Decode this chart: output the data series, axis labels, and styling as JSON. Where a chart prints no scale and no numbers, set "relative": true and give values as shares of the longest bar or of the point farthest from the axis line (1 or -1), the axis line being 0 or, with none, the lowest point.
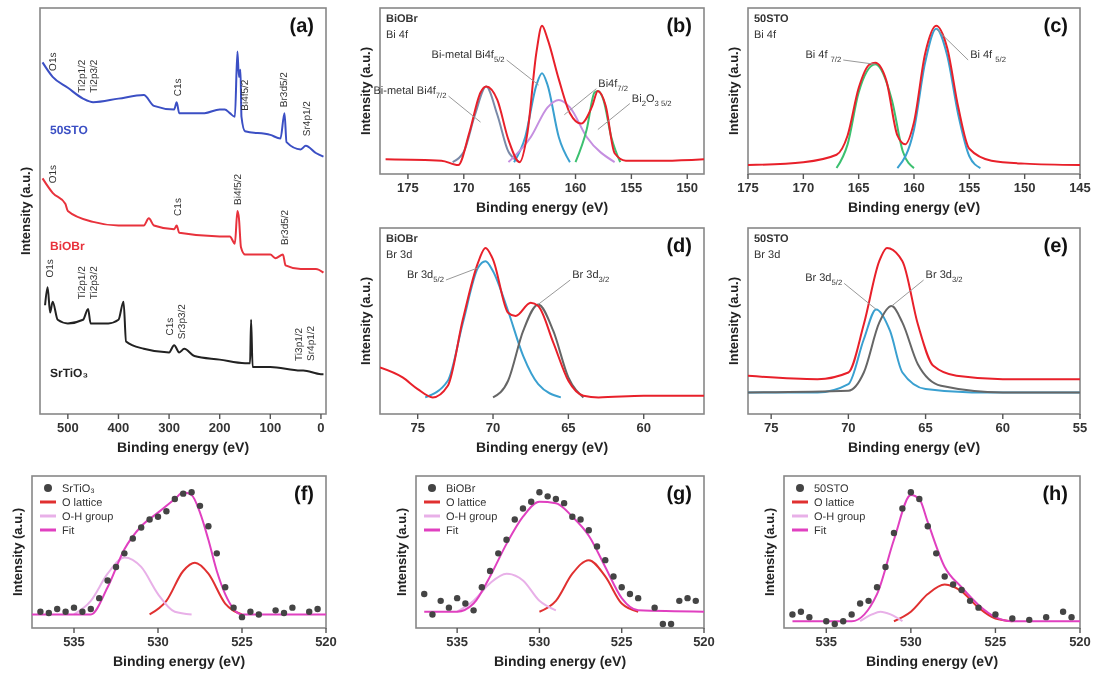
{
  "chart_data": [
    {
      "type": "line",
      "title": "(a)",
      "xlabel": "Binding energy (eV)",
      "ylabel": "Intensity (a.u.)",
      "relative": true,
      "xlim": [
        555,
        -10
      ],
      "xticks": [
        500,
        400,
        300,
        200,
        100,
        0
      ],
      "annotations": [
        {
          "text": "O1s",
          "x": 532,
          "y": 0.93
        },
        {
          "text": "Ti2p1/2",
          "x": 474,
          "y": 0.87
        },
        {
          "text": "Ti2p3/2",
          "x": 450,
          "y": 0.87
        },
        {
          "text": "C1s",
          "x": 285,
          "y": 0.86
        },
        {
          "text": "Bi4f5/2",
          "x": 152,
          "y": 0.82
        },
        {
          "text": "Br3d5/2",
          "x": 75,
          "y": 0.83
        },
        {
          "text": "Sr4p1/2",
          "x": 30,
          "y": 0.75
        },
        {
          "text": "O1s",
          "x": 532,
          "y": 0.62
        },
        {
          "text": "C1s",
          "x": 285,
          "y": 0.53
        },
        {
          "text": "Bi4f5/2",
          "x": 165,
          "y": 0.56
        },
        {
          "text": "Br3d5/2",
          "x": 72,
          "y": 0.45
        },
        {
          "text": "O1s",
          "x": 537,
          "y": 0.36
        },
        {
          "text": "Ti2p1/2",
          "x": 474,
          "y": 0.3
        },
        {
          "text": "Ti2p3/2",
          "x": 450,
          "y": 0.3
        },
        {
          "text": "C1s",
          "x": 300,
          "y": 0.2
        },
        {
          "text": "Sr3p3/2",
          "x": 276,
          "y": 0.19
        },
        {
          "text": "Ti3p1/2",
          "x": 46,
          "y": 0.13
        },
        {
          "text": "Sr4p1/2",
          "x": 22,
          "y": 0.13
        }
      ],
      "series": [
        {
          "name": "50STO",
          "color": "#3b4fc4",
          "x": [
            550,
            530,
            500,
            470,
            450,
            400,
            350,
            330,
            290,
            285,
            280,
            230,
            200,
            190,
            180,
            170,
            165,
            162,
            159,
            157,
            150,
            100,
            80,
            72,
            68,
            40,
            30,
            10,
            -5
          ],
          "values": [
            0.97,
            0.93,
            0.9,
            0.87,
            0.86,
            0.87,
            0.88,
            0.85,
            0.84,
            0.86,
            0.83,
            0.83,
            0.84,
            0.84,
            0.83,
            0.82,
            1.0,
            0.93,
            0.95,
            0.82,
            0.78,
            0.77,
            0.76,
            0.83,
            0.75,
            0.73,
            0.74,
            0.72,
            0.71
          ]
        },
        {
          "name": "BiOBr",
          "color": "#e8323c",
          "x": [
            550,
            530,
            505,
            500,
            450,
            400,
            350,
            340,
            330,
            290,
            285,
            280,
            200,
            180,
            170,
            165,
            162,
            158,
            150,
            100,
            90,
            75,
            70,
            40,
            10,
            -5
          ],
          "values": [
            0.65,
            0.61,
            0.58,
            0.56,
            0.53,
            0.52,
            0.52,
            0.54,
            0.52,
            0.51,
            0.52,
            0.5,
            0.49,
            0.49,
            0.47,
            0.56,
            0.54,
            0.46,
            0.44,
            0.44,
            0.43,
            0.44,
            0.41,
            0.4,
            0.4,
            0.39
          ]
        },
        {
          "name": "SrTiO₃",
          "color": "#222222",
          "x": [
            545,
            540,
            535,
            530,
            520,
            500,
            470,
            460,
            455,
            420,
            400,
            390,
            385,
            350,
            300,
            290,
            280,
            270,
            250,
            200,
            150,
            140,
            138,
            135,
            100,
            40,
            35,
            0,
            -5
          ],
          "values": [
            0.3,
            0.35,
            0.28,
            0.31,
            0.26,
            0.25,
            0.26,
            0.29,
            0.25,
            0.25,
            0.26,
            0.31,
            0.2,
            0.18,
            0.17,
            0.19,
            0.17,
            0.18,
            0.16,
            0.15,
            0.14,
            0.14,
            0.26,
            0.13,
            0.13,
            0.12,
            0.12,
            0.11,
            0.11
          ]
        }
      ]
    },
    {
      "type": "line",
      "title": "(b)",
      "xlabel": "Binding energy (eV)",
      "ylabel": "Intensity (a.u.)",
      "relative": true,
      "xlim": [
        177.5,
        148.5
      ],
      "xticks": [
        175,
        170,
        165,
        160,
        155,
        150
      ],
      "annotations": [
        "BiOBr",
        "Bi 4f",
        {
          "text": "Bi-metal Bi4f$_{5/2}$",
          "x": 163.3,
          "y": 0.6
        },
        {
          "text": "Bi-metal Bi4f$_{7/2}$",
          "x": 168.5,
          "y": 0.35
        },
        {
          "text": "Bi4f$_{7/2}$",
          "x": 161,
          "y": 0.4
        },
        {
          "text": "Bi$_{2}$O$_{3 5/2}$",
          "x": 158,
          "y": 0.3
        }
      ],
      "series": [
        {
          "color": "#7a8aa8",
          "x": [
            171,
            170,
            169,
            168,
            167,
            166,
            165
          ],
          "values": [
            0.08,
            0.15,
            0.4,
            0.59,
            0.4,
            0.15,
            0.08
          ]
        },
        {
          "color": "#3aa0d0",
          "x": [
            165.5,
            164.5,
            163.5,
            163,
            162.5,
            161.5,
            160.5
          ],
          "values": [
            0.08,
            0.25,
            0.6,
            0.68,
            0.6,
            0.25,
            0.08
          ]
        },
        {
          "color": "#c58fe0",
          "x": [
            166,
            164,
            162.5,
            161.5,
            160.5,
            159,
            156.5
          ],
          "values": [
            0.08,
            0.25,
            0.45,
            0.5,
            0.45,
            0.25,
            0.08
          ]
        },
        {
          "color": "#3cc070",
          "x": [
            160,
            159,
            158.3,
            158,
            157.5,
            156.8,
            156
          ],
          "values": [
            0.08,
            0.3,
            0.55,
            0.56,
            0.5,
            0.25,
            0.08
          ]
        },
        {
          "color": "#e8202a",
          "x": [
            177,
            172,
            170.5,
            169.5,
            168.5,
            168,
            167,
            166,
            165,
            164.3,
            163.5,
            163,
            162.5,
            161.5,
            160.5,
            159.5,
            158.5,
            158,
            157.3,
            156.5,
            155.5,
            152,
            148.5
          ],
          "values": [
            0.1,
            0.09,
            0.06,
            0.28,
            0.55,
            0.59,
            0.5,
            0.23,
            0.08,
            0.28,
            0.82,
            1.0,
            0.91,
            0.64,
            0.41,
            0.34,
            0.46,
            0.56,
            0.46,
            0.14,
            0.09,
            0.09,
            0.1
          ]
        }
      ]
    },
    {
      "type": "line",
      "title": "(c)",
      "xlabel": "Binding energy (eV)",
      "ylabel": "Intensity (a.u.)",
      "relative": true,
      "xlim": [
        175,
        145
      ],
      "xticks": [
        175,
        170,
        165,
        160,
        155,
        150,
        145
      ],
      "annotations": [
        "50STO",
        "Bi 4f",
        {
          "text": "Bi 4f $_{7/2}$",
          "x": 163.5,
          "y": 0.74
        },
        {
          "text": "Bi 4f $_{5/2}$",
          "x": 158,
          "y": 0.98
        }
      ],
      "series": [
        {
          "color": "#3cc070",
          "x": [
            167,
            166,
            165,
            163.5,
            162,
            161,
            160
          ],
          "values": [
            0.04,
            0.2,
            0.55,
            0.74,
            0.5,
            0.15,
            0.04
          ]
        },
        {
          "color": "#3aa0d0",
          "x": [
            161.5,
            160,
            159,
            158,
            157,
            156,
            155,
            154
          ],
          "values": [
            0.04,
            0.3,
            0.75,
            0.98,
            0.8,
            0.4,
            0.12,
            0.04
          ]
        },
        {
          "color": "#e8202a",
          "x": [
            175,
            170,
            167,
            166,
            165,
            164,
            163.5,
            162.5,
            161.5,
            160.8,
            160,
            159,
            158,
            157,
            156,
            155,
            153,
            150,
            145
          ],
          "values": [
            0.06,
            0.08,
            0.13,
            0.26,
            0.58,
            0.74,
            0.75,
            0.63,
            0.26,
            0.2,
            0.35,
            0.81,
            1.0,
            0.85,
            0.45,
            0.17,
            0.09,
            0.07,
            0.06
          ]
        }
      ]
    },
    {
      "type": "line",
      "title": "(d)",
      "xlabel": "Binding energy (eV)",
      "ylabel": "Intensity (a.u.)",
      "relative": true,
      "xlim": [
        77.5,
        56
      ],
      "xticks": [
        75,
        70,
        65,
        60
      ],
      "annotations": [
        "BiOBr",
        "Br 3d",
        {
          "text": "Br 3d$_{5/2}$",
          "x": 71,
          "y": 0.88
        },
        {
          "text": "Br 3d$_{3/2}$",
          "x": 67,
          "y": 0.66
        }
      ],
      "series": [
        {
          "color": "#3aa0d0",
          "x": [
            74.5,
            73,
            72,
            71,
            70.5,
            70,
            69,
            68,
            67,
            65.5
          ],
          "values": [
            0.1,
            0.2,
            0.55,
            0.88,
            0.92,
            0.86,
            0.62,
            0.35,
            0.18,
            0.1
          ]
        },
        {
          "color": "#666666",
          "x": [
            70,
            69,
            68,
            67,
            66,
            65,
            64
          ],
          "values": [
            0.1,
            0.2,
            0.5,
            0.66,
            0.5,
            0.22,
            0.1
          ]
        },
        {
          "color": "#e8202a",
          "x": [
            77.5,
            76,
            75,
            74,
            73,
            72,
            71,
            70.5,
            70,
            69,
            68.5,
            67.5,
            67,
            66,
            65,
            64,
            63,
            60,
            56
          ],
          "values": [
            0.28,
            0.22,
            0.15,
            0.1,
            0.17,
            0.57,
            0.91,
            1.0,
            0.93,
            0.61,
            0.59,
            0.67,
            0.65,
            0.43,
            0.2,
            0.11,
            0.1,
            0.11,
            0.11
          ]
        }
      ]
    },
    {
      "type": "line",
      "title": "(e)",
      "xlabel": "Binding energy (eV)",
      "ylabel": "Intensity (a.u.)",
      "relative": true,
      "xlim": [
        76.5,
        55
      ],
      "xticks": [
        75,
        70,
        65,
        60,
        55
      ],
      "annotations": [
        "50STO",
        "Br 3d",
        {
          "text": "Br 3d$_{5/2}$",
          "x": 68.2,
          "y": 0.63
        },
        {
          "text": "Br 3d$_{3/2}$",
          "x": 67.2,
          "y": 0.65
        }
      ],
      "series": [
        {
          "color": "#3aa0d0",
          "x": [
            76.5,
            72,
            70,
            69,
            68.2,
            67.3,
            66.5,
            65,
            62,
            55
          ],
          "values": [
            0.13,
            0.13,
            0.18,
            0.45,
            0.63,
            0.5,
            0.25,
            0.15,
            0.13,
            0.13
          ]
        },
        {
          "color": "#666666",
          "x": [
            76.5,
            70,
            69,
            68,
            67.2,
            66.5,
            65.5,
            64,
            60,
            55
          ],
          "values": [
            0.13,
            0.14,
            0.25,
            0.55,
            0.65,
            0.55,
            0.3,
            0.17,
            0.13,
            0.13
          ]
        },
        {
          "color": "#e8202a",
          "x": [
            76.5,
            72,
            70,
            69,
            68,
            67.5,
            66.5,
            65.5,
            64.5,
            63,
            60,
            55
          ],
          "values": [
            0.23,
            0.21,
            0.25,
            0.54,
            0.92,
            1.0,
            0.92,
            0.54,
            0.29,
            0.23,
            0.21,
            0.21
          ]
        }
      ]
    },
    {
      "type": "line",
      "title": "(f)",
      "xlabel": "Binding energy (eV)",
      "ylabel": "Intensity (a.u.)",
      "relative": true,
      "legend": "top left",
      "xlim": [
        537.5,
        520
      ],
      "xticks": [
        535,
        530,
        525,
        520
      ],
      "series": [
        {
          "name": "SrTiO₃",
          "type": "scatter",
          "color": "#444444",
          "x": [
            537,
            536.5,
            536,
            535.5,
            535,
            534.5,
            534,
            533.5,
            533,
            532.5,
            532,
            531.5,
            531,
            530.5,
            530,
            529.5,
            529,
            528.5,
            528,
            527.5,
            527,
            526.5,
            526,
            525.5,
            525,
            524.5,
            524,
            523,
            522.5,
            522,
            521,
            520.5
          ],
          "values": [
            0.12,
            0.11,
            0.14,
            0.12,
            0.15,
            0.12,
            0.14,
            0.22,
            0.35,
            0.45,
            0.55,
            0.66,
            0.74,
            0.8,
            0.82,
            0.86,
            0.95,
            0.99,
            1.0,
            0.9,
            0.75,
            0.55,
            0.3,
            0.15,
            0.08,
            0.12,
            0.1,
            0.13,
            0.11,
            0.15,
            0.12,
            0.14
          ]
        },
        {
          "name": "O lattice",
          "color": "#e03030",
          "x": [
            530.5,
            529.5,
            528.5,
            527.8,
            527,
            526,
            525
          ],
          "values": [
            0.1,
            0.2,
            0.42,
            0.48,
            0.4,
            0.18,
            0.1
          ]
        },
        {
          "name": "O-H group",
          "color": "#e8b0e8",
          "x": [
            535,
            534,
            533,
            532,
            531,
            530,
            529,
            528
          ],
          "values": [
            0.1,
            0.2,
            0.4,
            0.52,
            0.45,
            0.25,
            0.12,
            0.1
          ]
        },
        {
          "name": "Fit",
          "color": "#e040c0",
          "x": [
            537.5,
            534,
            533,
            532,
            531,
            530,
            529,
            528.5,
            528,
            527.5,
            527,
            526.5,
            526,
            525,
            520
          ],
          "values": [
            0.1,
            0.1,
            0.3,
            0.58,
            0.75,
            0.85,
            0.95,
            1.0,
            0.98,
            0.85,
            0.65,
            0.42,
            0.25,
            0.1,
            0.1
          ]
        }
      ]
    },
    {
      "type": "line",
      "title": "(g)",
      "xlabel": "Binding energy (eV)",
      "ylabel": "Intensity (a.u.)",
      "relative": true,
      "legend": "top left",
      "xlim": [
        537.5,
        520
      ],
      "xticks": [
        535,
        530,
        525,
        520
      ],
      "series": [
        {
          "name": "BiOBr",
          "type": "scatter",
          "color": "#444444",
          "x": [
            537,
            536.5,
            536,
            535.5,
            535,
            534.5,
            534,
            533.5,
            533,
            532.5,
            532,
            531.5,
            531,
            530.5,
            530,
            529.5,
            529,
            528.5,
            528,
            527.5,
            527,
            526.5,
            526,
            525.5,
            525,
            524.5,
            524,
            523,
            522.5,
            522,
            521.5,
            521,
            520.5
          ],
          "values": [
            0.25,
            0.1,
            0.2,
            0.15,
            0.22,
            0.18,
            0.13,
            0.3,
            0.42,
            0.55,
            0.65,
            0.8,
            0.88,
            0.93,
            1.0,
            0.97,
            0.95,
            0.92,
            0.82,
            0.8,
            0.72,
            0.6,
            0.5,
            0.38,
            0.3,
            0.25,
            0.22,
            0.15,
            0.03,
            0.03,
            0.2,
            0.22,
            0.2
          ]
        },
        {
          "name": "O lattice",
          "color": "#e03030",
          "x": [
            530,
            529,
            528,
            527,
            526,
            525,
            524
          ],
          "values": [
            0.12,
            0.2,
            0.4,
            0.5,
            0.38,
            0.18,
            0.12
          ]
        },
        {
          "name": "O-H group",
          "color": "#e8b0e8",
          "x": [
            535,
            534,
            533,
            532,
            531,
            530,
            529
          ],
          "values": [
            0.12,
            0.2,
            0.33,
            0.4,
            0.35,
            0.2,
            0.13
          ]
        },
        {
          "name": "Fit",
          "color": "#e040c0",
          "x": [
            537,
            535,
            534,
            533,
            532,
            531,
            530,
            529,
            528,
            527,
            526,
            525,
            524,
            520
          ],
          "values": [
            0.12,
            0.12,
            0.18,
            0.38,
            0.62,
            0.82,
            0.93,
            0.92,
            0.82,
            0.68,
            0.45,
            0.22,
            0.13,
            0.12
          ]
        }
      ]
    },
    {
      "type": "line",
      "title": "(h)",
      "xlabel": "Binding energy (eV)",
      "ylabel": "Intensity (a.u.)",
      "relative": true,
      "legend": "top left",
      "xlim": [
        537.5,
        520
      ],
      "xticks": [
        535,
        530,
        525,
        520
      ],
      "series": [
        {
          "name": "50STO",
          "type": "scatter",
          "color": "#444444",
          "x": [
            537,
            536.5,
            536,
            535,
            534.5,
            534,
            533.5,
            533,
            532.5,
            532,
            531.5,
            531,
            530.5,
            530,
            529.5,
            529,
            528.5,
            528,
            527.5,
            527,
            526.5,
            526,
            525,
            524,
            523,
            522,
            521,
            520.5
          ],
          "values": [
            0.1,
            0.12,
            0.08,
            0.05,
            0.03,
            0.05,
            0.1,
            0.18,
            0.2,
            0.3,
            0.45,
            0.7,
            0.88,
            1.0,
            0.95,
            0.75,
            0.55,
            0.38,
            0.32,
            0.28,
            0.2,
            0.15,
            0.1,
            0.07,
            0.06,
            0.08,
            0.12,
            0.08
          ]
        },
        {
          "name": "O lattice",
          "color": "#e03030",
          "x": [
            531,
            530,
            529,
            528,
            527,
            526,
            525,
            524
          ],
          "values": [
            0.05,
            0.12,
            0.25,
            0.32,
            0.27,
            0.15,
            0.07,
            0.05
          ]
        },
        {
          "name": "O-H group",
          "color": "#e8b0e8",
          "x": [
            533,
            532.3,
            531.8,
            531.2,
            530.5
          ],
          "values": [
            0.05,
            0.1,
            0.12,
            0.1,
            0.05
          ]
        },
        {
          "name": "Fit",
          "color": "#e040c0",
          "x": [
            537,
            533.5,
            532,
            531,
            530,
            529.5,
            529,
            528,
            527,
            526,
            525,
            524,
            520
          ],
          "values": [
            0.05,
            0.05,
            0.25,
            0.65,
            0.98,
            0.95,
            0.78,
            0.45,
            0.3,
            0.17,
            0.08,
            0.05,
            0.05
          ]
        }
      ]
    }
  ]
}
